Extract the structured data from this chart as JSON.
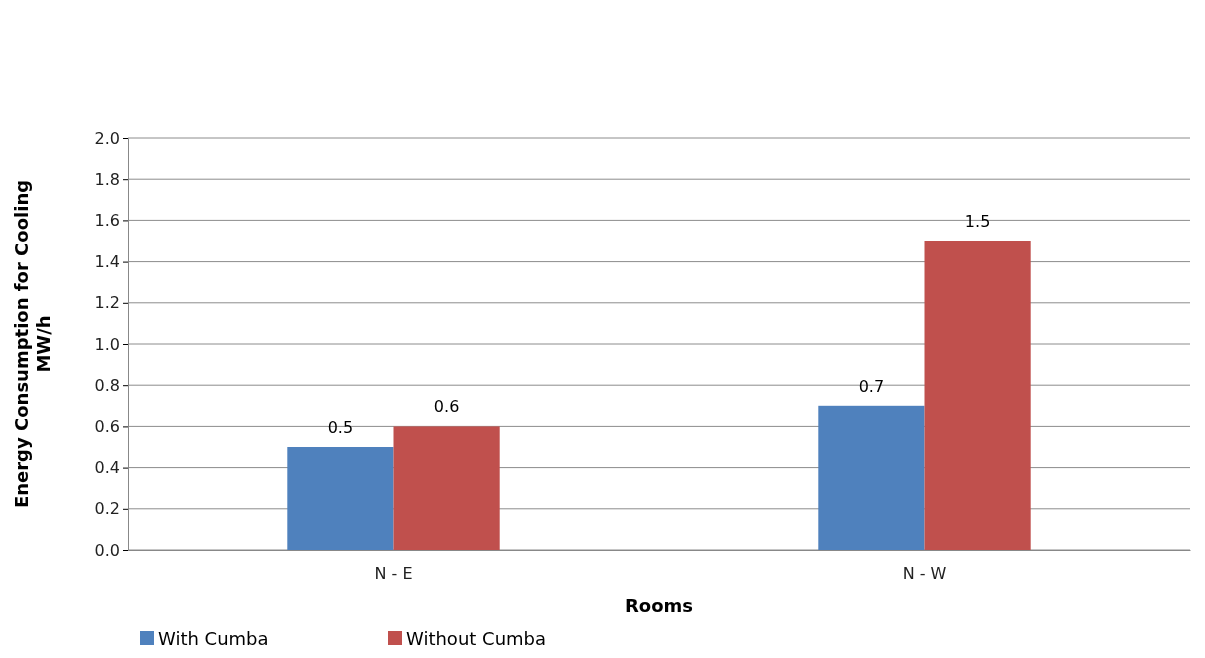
{
  "chart_data": {
    "type": "bar",
    "categories": [
      "N - E",
      "N - W"
    ],
    "series": [
      {
        "name": "With Cumba",
        "color": "#4f81bd",
        "values": [
          0.5,
          0.7
        ]
      },
      {
        "name": "Without Cumba",
        "color": "#c0504d",
        "values": [
          0.6,
          1.5
        ]
      }
    ],
    "xlabel": "Rooms",
    "ylabel": "Energy Consumption for Cooling MW/h",
    "ylim": [
      0,
      2
    ],
    "yticks": [
      {
        "value": 0,
        "label": "0.0"
      },
      {
        "value": 0.2,
        "label": "0.2"
      },
      {
        "value": 0.4,
        "label": "0.4"
      },
      {
        "value": 0.6,
        "label": "0.6"
      },
      {
        "value": 0.8,
        "label": "0.8"
      },
      {
        "value": 1,
        "label": "1.0"
      },
      {
        "value": 1.2,
        "label": "1.2"
      },
      {
        "value": 1.4,
        "label": "1.4"
      },
      {
        "value": 1.6,
        "label": "1.6"
      },
      {
        "value": 1.8,
        "label": "1.8"
      },
      {
        "value": 2,
        "label": "2.0"
      }
    ],
    "grid": "y",
    "data_labels": true,
    "legend": "bottom left"
  }
}
